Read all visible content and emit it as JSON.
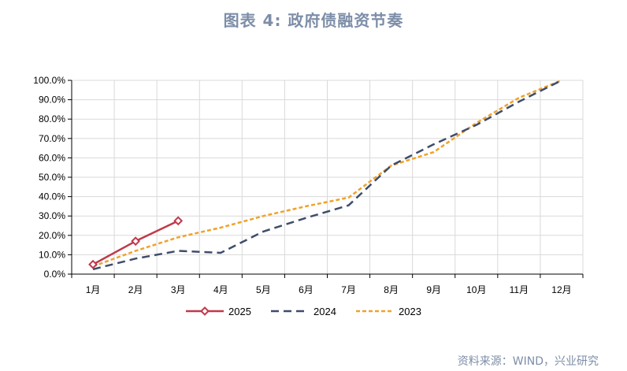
{
  "title": "图表 4:  政府债融资节奏",
  "source": "资料来源：WIND，兴业研究",
  "colors": {
    "s2025": "#c0394b",
    "s2024": "#3f4d6b",
    "s2023": "#f0a22a",
    "grid": "#d9d9d9",
    "axis": "#000000"
  },
  "chart_data": {
    "type": "line",
    "categories": [
      "1月",
      "2月",
      "3月",
      "4月",
      "5月",
      "6月",
      "7月",
      "8月",
      "9月",
      "10月",
      "11月",
      "12月"
    ],
    "ylim": [
      0,
      100
    ],
    "yticks": [
      "0.0%",
      "10.0%",
      "20.0%",
      "30.0%",
      "40.0%",
      "50.0%",
      "60.0%",
      "70.0%",
      "80.0%",
      "90.0%",
      "100.0%"
    ],
    "grid": true,
    "legend_position": "bottom",
    "series": [
      {
        "name": "2025",
        "style": "solid-diamond",
        "x": [
          0.5,
          1.5,
          2.5
        ],
        "values": [
          5,
          17,
          27.5
        ]
      },
      {
        "name": "2024",
        "style": "long-dash",
        "x": [
          0.5,
          1.5,
          2.0,
          2.5,
          3.0,
          3.5,
          4.5,
          5.5,
          6.5,
          7.5,
          8.5,
          9.5,
          10.5,
          11.5
        ],
        "values": [
          2.5,
          8,
          10,
          12,
          11.5,
          11,
          22,
          29,
          35.5,
          56,
          67,
          77,
          89,
          100
        ]
      },
      {
        "name": "2023",
        "style": "short-dash",
        "x": [
          0.5,
          1.5,
          2.5,
          3.5,
          4.5,
          5.5,
          6.5,
          7.5,
          8.5,
          9.5,
          10.5,
          11.5
        ],
        "values": [
          4,
          12,
          19,
          24,
          30,
          35,
          39.5,
          56,
          63,
          78,
          91,
          100
        ]
      }
    ]
  }
}
